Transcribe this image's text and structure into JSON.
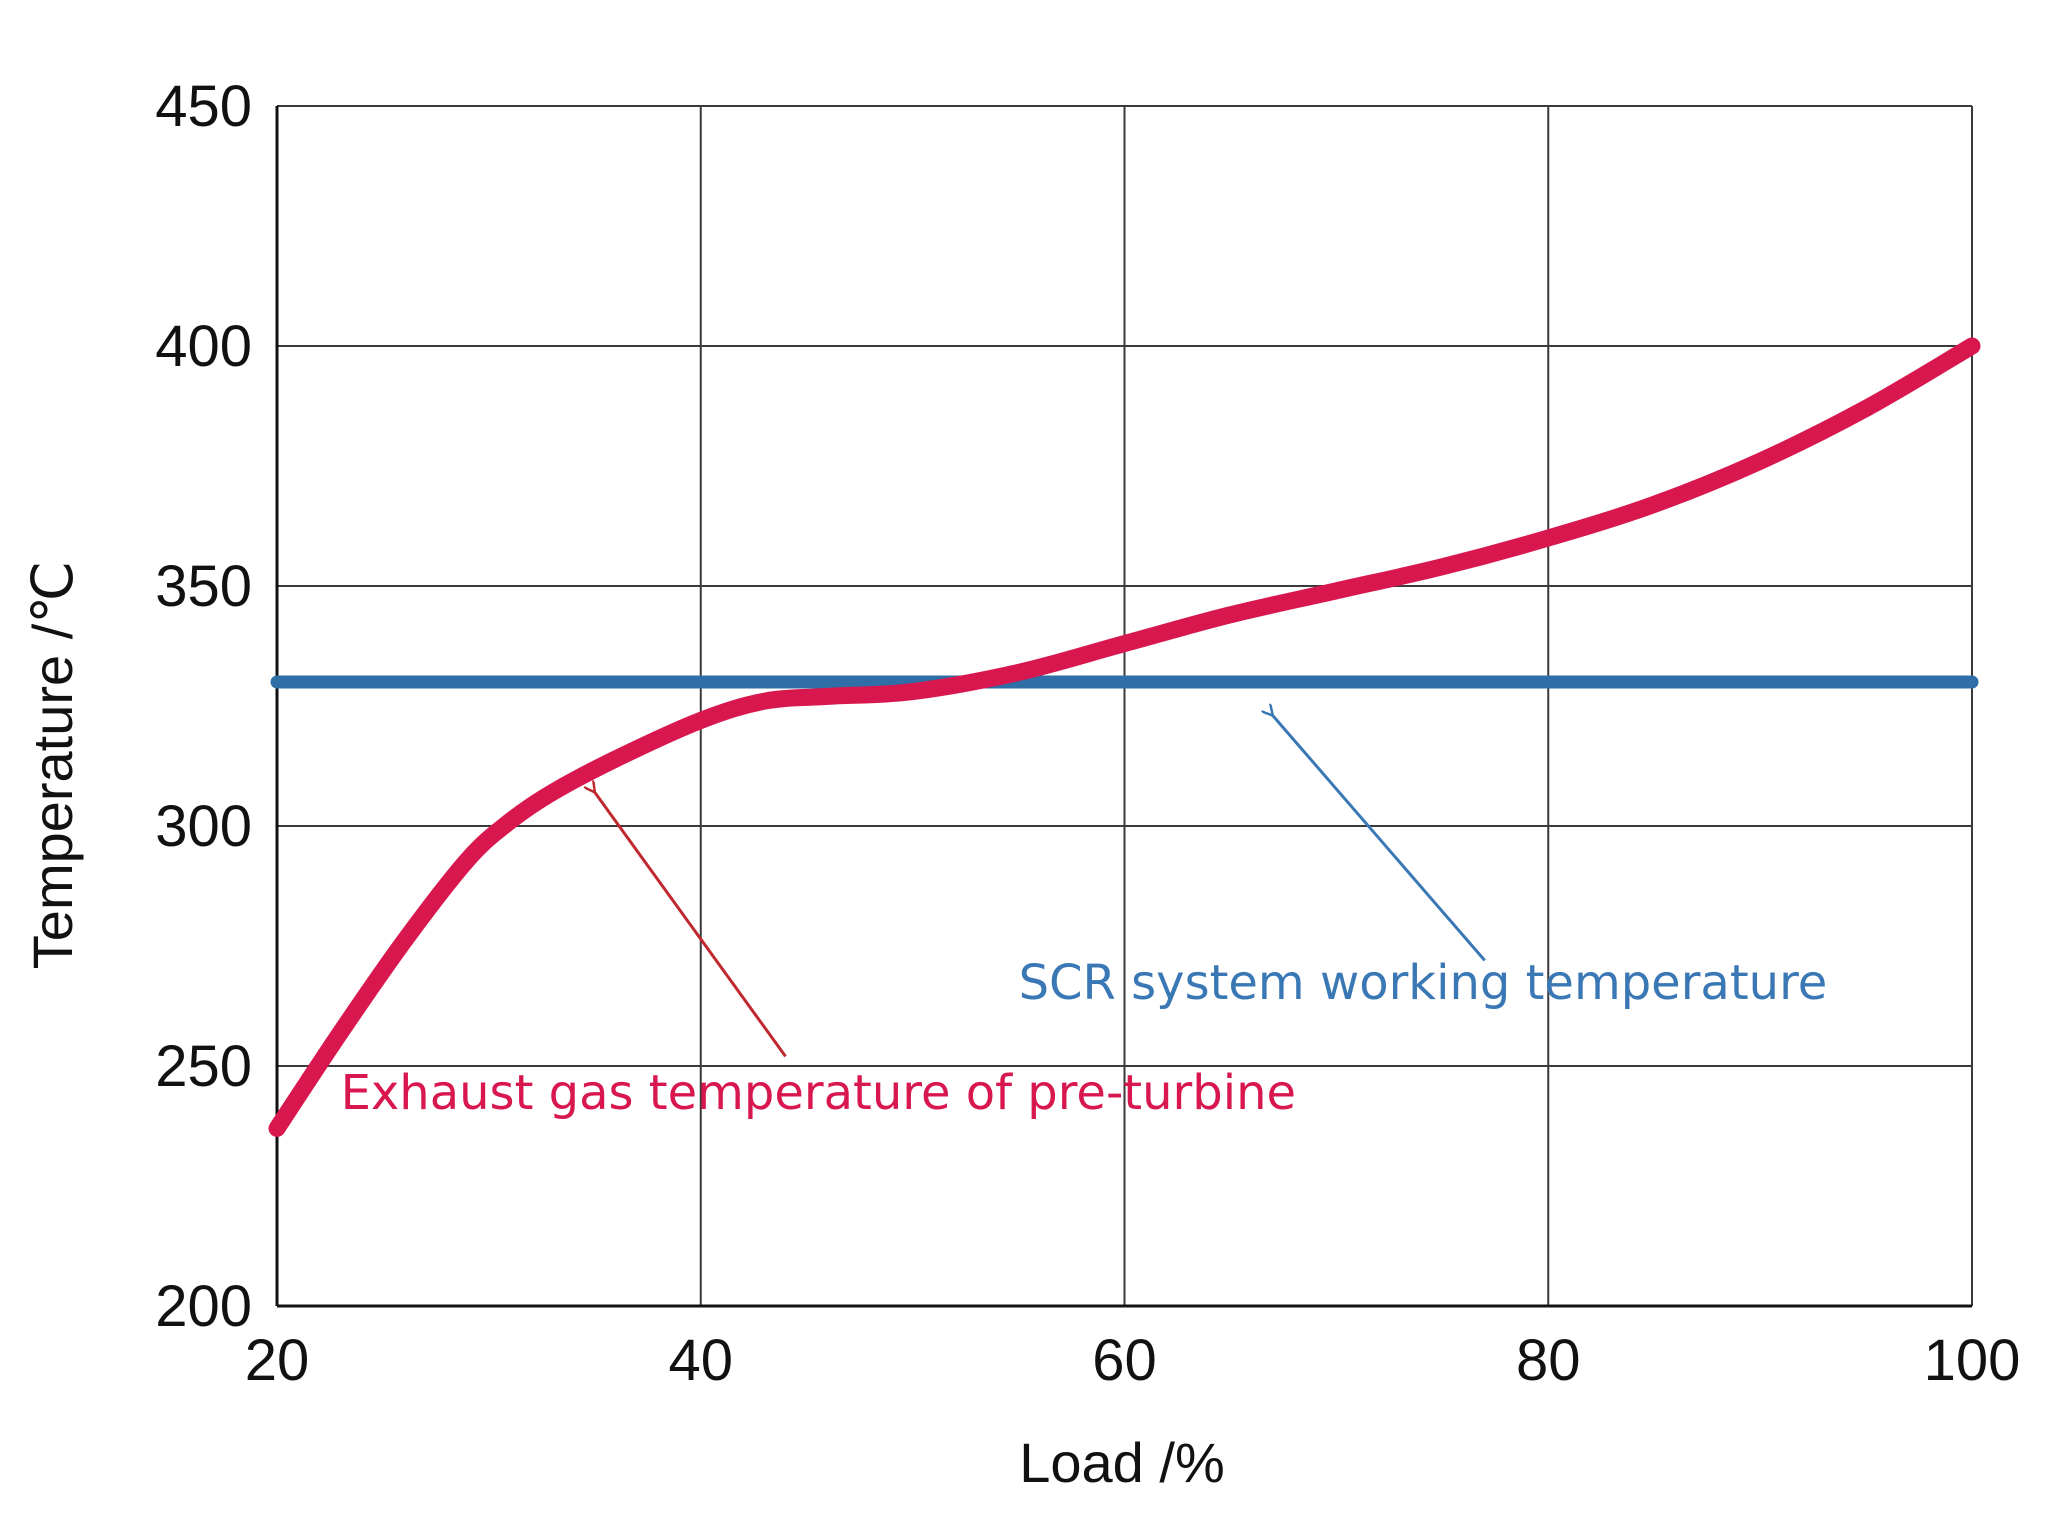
{
  "chart_data": {
    "type": "line",
    "title": "",
    "xlabel": "Load /%",
    "ylabel": "Temperature /℃",
    "xlim": [
      20,
      100
    ],
    "ylim": [
      200,
      450
    ],
    "xticks": [
      20,
      40,
      60,
      80,
      100
    ],
    "yticks": [
      200,
      250,
      300,
      350,
      400,
      450
    ],
    "grid": true,
    "series": [
      {
        "name": "Exhaust gas temperature of pre-turbine",
        "color": "#d8174f",
        "x": [
          20,
          23,
          26,
          29,
          31,
          33,
          36,
          40,
          43,
          46,
          50,
          55,
          60,
          65,
          70,
          75,
          80,
          85,
          90,
          95,
          100
        ],
        "y": [
          237,
          257,
          276,
          293,
          301,
          307,
          314,
          322,
          326,
          327,
          328,
          332,
          338,
          344,
          349,
          354,
          360,
          367,
          376,
          387,
          400
        ]
      },
      {
        "name": "SCR system working temperature",
        "color": "#2f6ea6",
        "x": [
          20,
          100
        ],
        "y": [
          330,
          330
        ]
      }
    ],
    "annotations": [
      {
        "text": "Exhaust gas temperature of pre-turbine",
        "color": "#d8174f",
        "text_at": [
          23,
          241
        ],
        "arrow_from": [
          44,
          252
        ],
        "arrow_to": [
          35,
          307
        ]
      },
      {
        "text": "SCR system working temperature",
        "color": "#3a78b5",
        "text_at": [
          55,
          264
        ],
        "arrow_from": [
          77,
          272
        ],
        "arrow_to": [
          67,
          323
        ]
      }
    ]
  }
}
